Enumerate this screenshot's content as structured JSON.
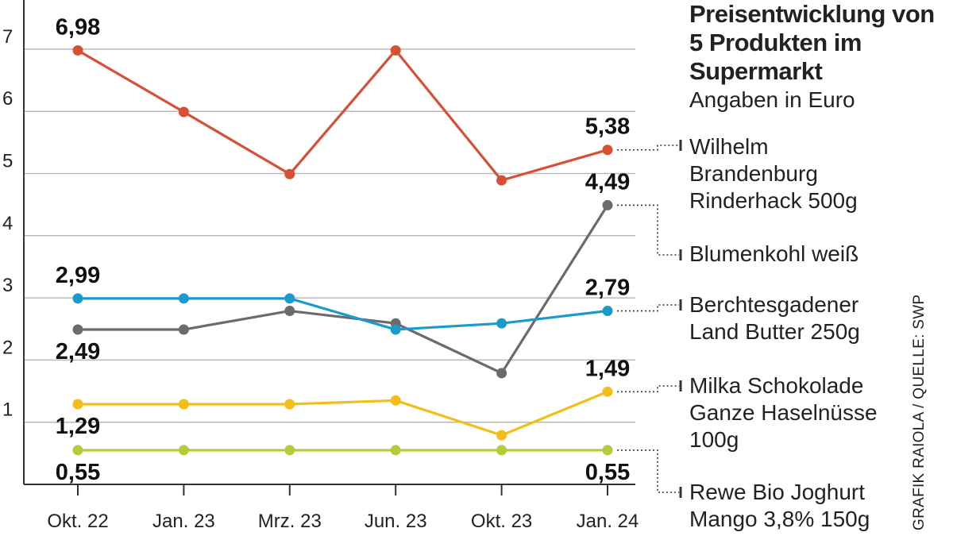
{
  "chart_data": {
    "type": "line",
    "title": "Preisentwicklung von 5 Produkten im Supermarkt",
    "subtitle": "Angaben in Euro",
    "credit": "GRAFIK RAIOLA / QUELLE: SWP",
    "categories": [
      "Okt. 22",
      "Jan. 23",
      "Mrz. 23",
      "Jun. 23",
      "Okt. 23",
      "Jan. 24"
    ],
    "ylim": [
      0,
      7
    ],
    "yticks": [
      1,
      2,
      3,
      4,
      5,
      6,
      7
    ],
    "grid": true,
    "series": [
      {
        "name": "Wilhelm Brandenburg Rinderhack 500g",
        "color": "#d94f35",
        "values": [
          6.98,
          5.99,
          4.99,
          6.98,
          4.89,
          5.38
        ],
        "labels": [
          {
            "index": 0,
            "text": "6,98",
            "pos": "above"
          },
          {
            "index": 5,
            "text": "5,38",
            "pos": "above"
          }
        ]
      },
      {
        "name": "Blumenkohl weiß",
        "color": "#6b6b6b",
        "values": [
          2.49,
          2.49,
          2.79,
          2.59,
          1.79,
          4.49
        ],
        "labels": [
          {
            "index": 0,
            "text": "2,49",
            "pos": "below"
          },
          {
            "index": 5,
            "text": "4,49",
            "pos": "above"
          }
        ]
      },
      {
        "name": "Berchtesgadener Land Butter 250g",
        "color": "#1a9bcb",
        "values": [
          2.99,
          2.99,
          2.99,
          2.49,
          2.59,
          2.79
        ],
        "labels": [
          {
            "index": 0,
            "text": "2,99",
            "pos": "above"
          },
          {
            "index": 5,
            "text": "2,79",
            "pos": "above"
          }
        ]
      },
      {
        "name": "Milka Schokolade Ganze Haselnüsse 100g",
        "color": "#f5bd17",
        "values": [
          1.29,
          1.29,
          1.29,
          1.35,
          0.79,
          1.49
        ],
        "labels": [
          {
            "index": 0,
            "text": "1,29",
            "pos": "below"
          },
          {
            "index": 5,
            "text": "1,49",
            "pos": "above"
          }
        ]
      },
      {
        "name": "Rewe Bio Joghurt Mango 3,8% 150g",
        "color": "#b2cc3a",
        "values": [
          0.55,
          0.55,
          0.55,
          0.55,
          0.55,
          0.55
        ],
        "labels": [
          {
            "index": 0,
            "text": "0,55",
            "pos": "below"
          },
          {
            "index": 5,
            "text": "0,55",
            "pos": "below"
          }
        ]
      }
    ]
  },
  "legend": [
    {
      "lines": [
        "Wilhelm",
        "Brandenburg",
        "Rinderhack 500g"
      ]
    },
    {
      "lines": [
        "Blumenkohl weiß"
      ]
    },
    {
      "lines": [
        "Berchtesgadener",
        "Land Butter 250g"
      ]
    },
    {
      "lines": [
        "Milka Schokolade",
        "Ganze Haselnüsse",
        "100g"
      ]
    },
    {
      "lines": [
        "Rewe Bio Joghurt",
        "Mango 3,8% 150g"
      ]
    }
  ]
}
